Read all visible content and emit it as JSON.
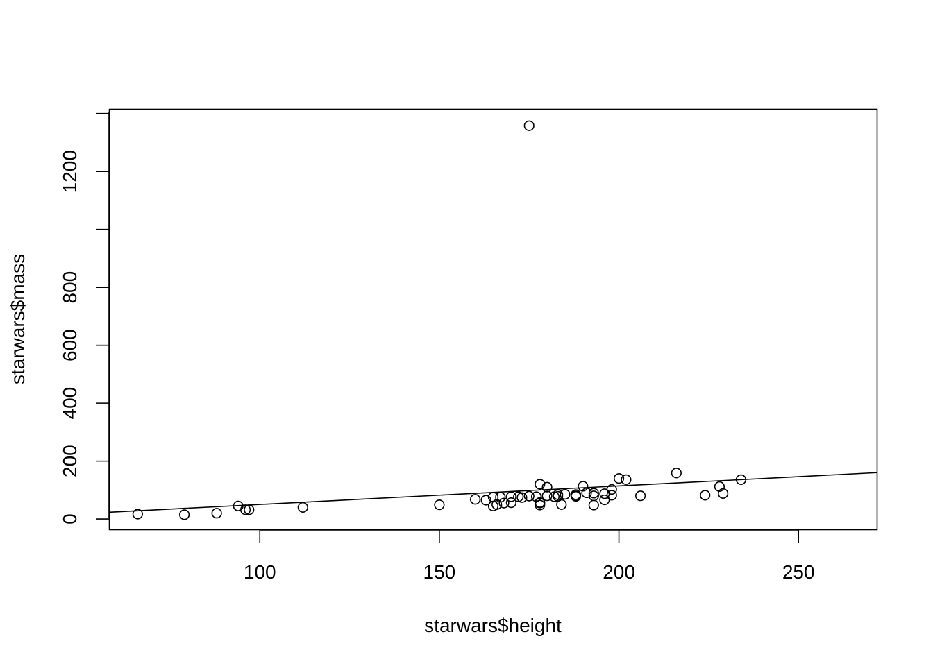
{
  "chart_data": {
    "type": "scatter",
    "title": "",
    "xlabel": "starwars$height",
    "ylabel": "starwars$mass",
    "xlim": [
      58.2,
      271.8
    ],
    "ylim": [
      -35.7,
      1413.7
    ],
    "xticks": [
      100,
      150,
      200,
      250
    ],
    "yticks": [
      0,
      200,
      400,
      600,
      800,
      1000,
      1200,
      1400
    ],
    "ytick_labels": [
      "0",
      "200",
      "400",
      "600",
      "800",
      "",
      "1200",
      ""
    ],
    "grid": false,
    "legend": "none",
    "point_marker": "open-circle",
    "regression_line": {
      "intercept": -13.8,
      "slope": 0.64
    },
    "points": [
      {
        "x": 66,
        "y": 17
      },
      {
        "x": 79,
        "y": 15
      },
      {
        "x": 88,
        "y": 20
      },
      {
        "x": 94,
        "y": 45
      },
      {
        "x": 96,
        "y": 32
      },
      {
        "x": 97,
        "y": 32
      },
      {
        "x": 112,
        "y": 40
      },
      {
        "x": 150,
        "y": 49
      },
      {
        "x": 160,
        "y": 68
      },
      {
        "x": 163,
        "y": 65
      },
      {
        "x": 165,
        "y": 75
      },
      {
        "x": 165,
        "y": 45
      },
      {
        "x": 166,
        "y": 50
      },
      {
        "x": 167,
        "y": 75
      },
      {
        "x": 168,
        "y": 55
      },
      {
        "x": 170,
        "y": 77
      },
      {
        "x": 170,
        "y": 56.2
      },
      {
        "x": 172,
        "y": 77
      },
      {
        "x": 173,
        "y": 74
      },
      {
        "x": 175,
        "y": 1358
      },
      {
        "x": 175,
        "y": 79
      },
      {
        "x": 177,
        "y": 77
      },
      {
        "x": 178,
        "y": 120
      },
      {
        "x": 178,
        "y": 55
      },
      {
        "x": 178,
        "y": 48
      },
      {
        "x": 178,
        "y": 57
      },
      {
        "x": 180,
        "y": 110
      },
      {
        "x": 180,
        "y": 80
      },
      {
        "x": 182,
        "y": 77
      },
      {
        "x": 183,
        "y": 78.2
      },
      {
        "x": 183,
        "y": 84
      },
      {
        "x": 184,
        "y": 50
      },
      {
        "x": 185,
        "y": 85
      },
      {
        "x": 188,
        "y": 84
      },
      {
        "x": 188,
        "y": 80
      },
      {
        "x": 188,
        "y": 78
      },
      {
        "x": 190,
        "y": 113
      },
      {
        "x": 191,
        "y": 90
      },
      {
        "x": 193,
        "y": 89
      },
      {
        "x": 193,
        "y": 80
      },
      {
        "x": 193,
        "y": 48
      },
      {
        "x": 196,
        "y": 87
      },
      {
        "x": 196,
        "y": 66
      },
      {
        "x": 198,
        "y": 102
      },
      {
        "x": 198,
        "y": 82
      },
      {
        "x": 200,
        "y": 140
      },
      {
        "x": 202,
        "y": 136
      },
      {
        "x": 206,
        "y": 80
      },
      {
        "x": 216,
        "y": 159
      },
      {
        "x": 224,
        "y": 82
      },
      {
        "x": 228,
        "y": 112
      },
      {
        "x": 229,
        "y": 88
      },
      {
        "x": 234,
        "y": 136
      }
    ]
  }
}
